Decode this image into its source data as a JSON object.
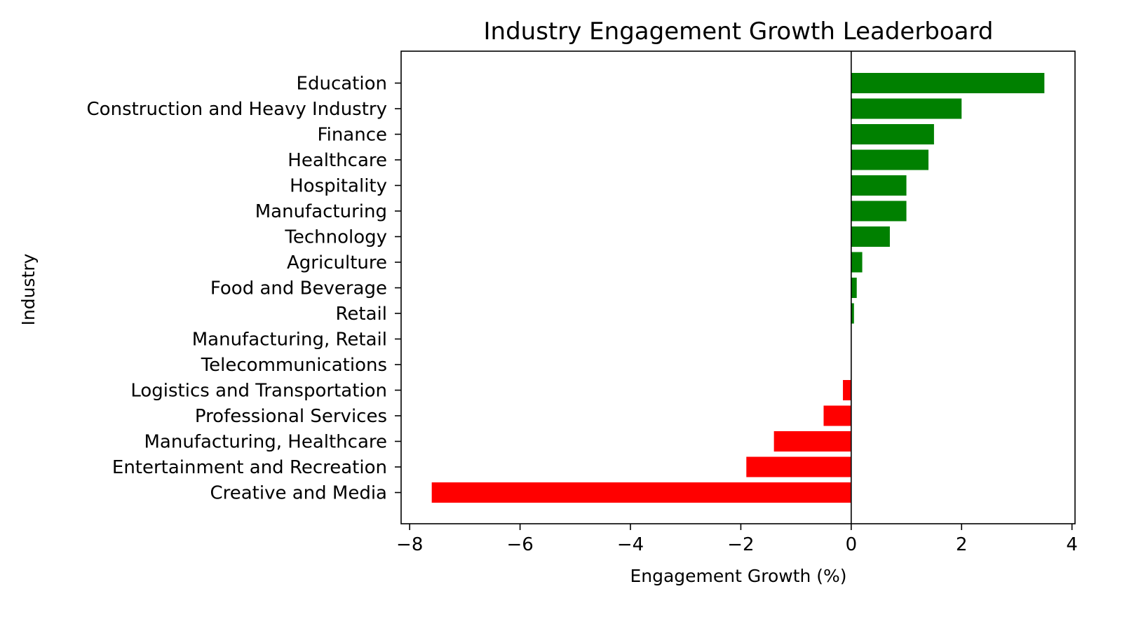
{
  "chart_data": {
    "type": "bar",
    "orientation": "horizontal",
    "title": "Industry Engagement Growth Leaderboard",
    "xlabel": "Engagement Growth (%)",
    "ylabel": "Industry",
    "xlim": [
      -8.155,
      4.055
    ],
    "xticks": [
      -8,
      -6,
      -4,
      -2,
      0,
      2,
      4
    ],
    "xtick_labels": [
      "−8",
      "−6",
      "−4",
      "−2",
      "0",
      "2",
      "4"
    ],
    "grid": false,
    "legend": "none",
    "positive_color": "#008000",
    "negative_color": "#ff0000",
    "categories": [
      "Education",
      "Construction and Heavy Industry",
      "Finance",
      "Healthcare",
      "Hospitality",
      "Manufacturing",
      "Technology",
      "Agriculture",
      "Food and Beverage",
      "Retail",
      "Manufacturing, Retail",
      "Telecommunications",
      "Logistics and Transportation",
      "Professional Services",
      "Manufacturing, Healthcare",
      "Entertainment and Recreation",
      "Creative and Media"
    ],
    "values": [
      3.5,
      2.0,
      1.5,
      1.4,
      1.0,
      1.0,
      0.7,
      0.2,
      0.1,
      0.05,
      0.0,
      0.0,
      -0.15,
      -0.5,
      -1.4,
      -1.9,
      -7.6
    ]
  }
}
